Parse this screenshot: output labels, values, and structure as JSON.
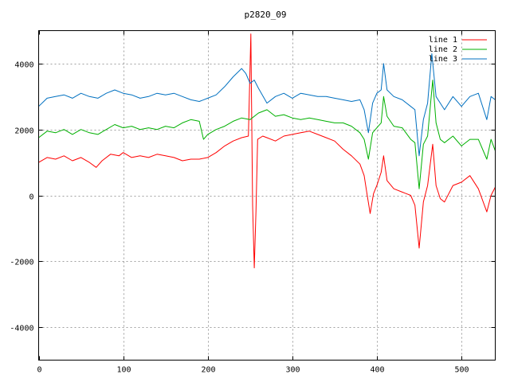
{
  "chart_data": {
    "type": "line",
    "title": "p2820_09",
    "xlabel": "",
    "ylabel": "",
    "xlim": [
      0,
      540
    ],
    "ylim": [
      -5000,
      5000
    ],
    "xticks": [
      0,
      100,
      200,
      300,
      400,
      500
    ],
    "yticks": [
      -4000,
      -2000,
      0,
      2000,
      4000
    ],
    "grid": true,
    "legend_position": "top-right",
    "series": [
      {
        "name": "line 1",
        "color": "#ff0000",
        "points": [
          [
            0,
            1000
          ],
          [
            10,
            1150
          ],
          [
            20,
            1100
          ],
          [
            30,
            1200
          ],
          [
            40,
            1050
          ],
          [
            50,
            1150
          ],
          [
            60,
            1000
          ],
          [
            68,
            850
          ],
          [
            75,
            1050
          ],
          [
            85,
            1250
          ],
          [
            95,
            1200
          ],
          [
            100,
            1300
          ],
          [
            110,
            1150
          ],
          [
            120,
            1200
          ],
          [
            130,
            1150
          ],
          [
            140,
            1250
          ],
          [
            150,
            1200
          ],
          [
            160,
            1150
          ],
          [
            170,
            1050
          ],
          [
            180,
            1100
          ],
          [
            190,
            1100
          ],
          [
            200,
            1150
          ],
          [
            210,
            1300
          ],
          [
            220,
            1500
          ],
          [
            230,
            1650
          ],
          [
            240,
            1750
          ],
          [
            248,
            1800
          ],
          [
            251,
            4900
          ],
          [
            253,
            -300
          ],
          [
            255,
            -2200
          ],
          [
            257,
            -500
          ],
          [
            259,
            1700
          ],
          [
            265,
            1800
          ],
          [
            270,
            1750
          ],
          [
            280,
            1650
          ],
          [
            290,
            1800
          ],
          [
            300,
            1850
          ],
          [
            310,
            1900
          ],
          [
            320,
            1950
          ],
          [
            330,
            1850
          ],
          [
            340,
            1750
          ],
          [
            350,
            1650
          ],
          [
            360,
            1400
          ],
          [
            370,
            1200
          ],
          [
            380,
            950
          ],
          [
            385,
            600
          ],
          [
            388,
            100
          ],
          [
            392,
            -550
          ],
          [
            396,
            50
          ],
          [
            400,
            300
          ],
          [
            405,
            700
          ],
          [
            408,
            1200
          ],
          [
            412,
            450
          ],
          [
            420,
            200
          ],
          [
            430,
            100
          ],
          [
            440,
            0
          ],
          [
            445,
            -300
          ],
          [
            450,
            -1600
          ],
          [
            455,
            -200
          ],
          [
            460,
            300
          ],
          [
            466,
            1550
          ],
          [
            470,
            300
          ],
          [
            475,
            -100
          ],
          [
            480,
            -200
          ],
          [
            490,
            300
          ],
          [
            500,
            400
          ],
          [
            510,
            600
          ],
          [
            520,
            200
          ],
          [
            530,
            -500
          ],
          [
            535,
            0
          ],
          [
            540,
            250
          ]
        ]
      },
      {
        "name": "line 2",
        "color": "#00b000",
        "points": [
          [
            0,
            1750
          ],
          [
            10,
            1950
          ],
          [
            20,
            1900
          ],
          [
            30,
            2000
          ],
          [
            40,
            1850
          ],
          [
            50,
            2000
          ],
          [
            60,
            1900
          ],
          [
            70,
            1850
          ],
          [
            80,
            2000
          ],
          [
            90,
            2150
          ],
          [
            100,
            2050
          ],
          [
            110,
            2100
          ],
          [
            120,
            2000
          ],
          [
            130,
            2050
          ],
          [
            140,
            2000
          ],
          [
            150,
            2100
          ],
          [
            160,
            2050
          ],
          [
            170,
            2200
          ],
          [
            180,
            2300
          ],
          [
            190,
            2250
          ],
          [
            195,
            1700
          ],
          [
            200,
            1850
          ],
          [
            210,
            2000
          ],
          [
            220,
            2100
          ],
          [
            230,
            2250
          ],
          [
            240,
            2350
          ],
          [
            250,
            2300
          ],
          [
            260,
            2500
          ],
          [
            270,
            2600
          ],
          [
            280,
            2400
          ],
          [
            290,
            2450
          ],
          [
            300,
            2350
          ],
          [
            310,
            2300
          ],
          [
            320,
            2350
          ],
          [
            330,
            2300
          ],
          [
            340,
            2250
          ],
          [
            350,
            2200
          ],
          [
            360,
            2200
          ],
          [
            370,
            2100
          ],
          [
            380,
            1900
          ],
          [
            385,
            1700
          ],
          [
            390,
            1100
          ],
          [
            395,
            1900
          ],
          [
            400,
            2050
          ],
          [
            405,
            2200
          ],
          [
            408,
            3000
          ],
          [
            412,
            2400
          ],
          [
            420,
            2100
          ],
          [
            430,
            2050
          ],
          [
            440,
            1700
          ],
          [
            445,
            1600
          ],
          [
            450,
            200
          ],
          [
            455,
            1550
          ],
          [
            460,
            1800
          ],
          [
            466,
            3500
          ],
          [
            470,
            2200
          ],
          [
            475,
            1700
          ],
          [
            480,
            1600
          ],
          [
            490,
            1800
          ],
          [
            500,
            1500
          ],
          [
            510,
            1700
          ],
          [
            520,
            1700
          ],
          [
            530,
            1100
          ],
          [
            535,
            1700
          ],
          [
            540,
            1350
          ]
        ]
      },
      {
        "name": "line 3",
        "color": "#0070c0",
        "points": [
          [
            0,
            2700
          ],
          [
            10,
            2950
          ],
          [
            20,
            3000
          ],
          [
            30,
            3050
          ],
          [
            40,
            2950
          ],
          [
            50,
            3100
          ],
          [
            60,
            3000
          ],
          [
            70,
            2950
          ],
          [
            80,
            3100
          ],
          [
            90,
            3200
          ],
          [
            100,
            3100
          ],
          [
            110,
            3050
          ],
          [
            120,
            2950
          ],
          [
            130,
            3000
          ],
          [
            140,
            3100
          ],
          [
            150,
            3050
          ],
          [
            160,
            3100
          ],
          [
            170,
            3000
          ],
          [
            180,
            2900
          ],
          [
            190,
            2850
          ],
          [
            200,
            2950
          ],
          [
            210,
            3050
          ],
          [
            220,
            3300
          ],
          [
            230,
            3600
          ],
          [
            240,
            3850
          ],
          [
            245,
            3700
          ],
          [
            250,
            3400
          ],
          [
            255,
            3500
          ],
          [
            260,
            3250
          ],
          [
            270,
            2800
          ],
          [
            280,
            3000
          ],
          [
            290,
            3100
          ],
          [
            300,
            2950
          ],
          [
            310,
            3100
          ],
          [
            320,
            3050
          ],
          [
            330,
            3000
          ],
          [
            340,
            3000
          ],
          [
            350,
            2950
          ],
          [
            360,
            2900
          ],
          [
            370,
            2850
          ],
          [
            380,
            2900
          ],
          [
            385,
            2600
          ],
          [
            390,
            1900
          ],
          [
            395,
            2800
          ],
          [
            400,
            3100
          ],
          [
            405,
            3200
          ],
          [
            408,
            4000
          ],
          [
            412,
            3200
          ],
          [
            420,
            3000
          ],
          [
            430,
            2900
          ],
          [
            440,
            2700
          ],
          [
            445,
            2600
          ],
          [
            450,
            1200
          ],
          [
            455,
            2300
          ],
          [
            460,
            2800
          ],
          [
            465,
            4300
          ],
          [
            470,
            3000
          ],
          [
            475,
            2800
          ],
          [
            480,
            2600
          ],
          [
            490,
            3000
          ],
          [
            500,
            2700
          ],
          [
            510,
            3000
          ],
          [
            520,
            3100
          ],
          [
            530,
            2300
          ],
          [
            535,
            3000
          ],
          [
            540,
            2900
          ]
        ]
      }
    ]
  }
}
